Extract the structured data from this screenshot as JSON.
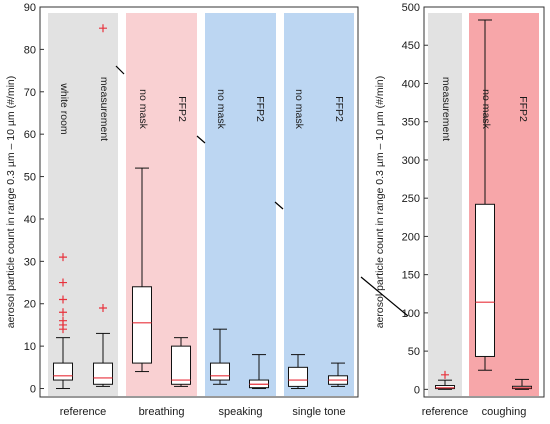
{
  "chart_data": [
    {
      "type": "box",
      "ylabel": "aerosol particle count in range 0.3 µm – 10 µm  (#/min)",
      "ylim": [
        -2,
        90
      ],
      "yticks": [
        0,
        10,
        20,
        30,
        40,
        50,
        60,
        70,
        80,
        90
      ],
      "groups": [
        {
          "label": "reference",
          "color": "#e2e2e2"
        },
        {
          "label": "breathing",
          "color": "#f9d0d2"
        },
        {
          "label": "speaking",
          "color": "#bcd6f2"
        },
        {
          "label": "single tone",
          "color": "#bcd6f2"
        }
      ],
      "series": [
        {
          "label": "white room",
          "group": 0,
          "whisker_low": 0,
          "q1": 2,
          "median": 3,
          "q3": 6,
          "whisker_high": 12,
          "outliers": [
            14,
            15,
            16,
            18,
            21,
            25,
            31
          ]
        },
        {
          "label": "measurement",
          "group": 0,
          "whisker_low": 0.5,
          "q1": 1,
          "median": 2.5,
          "q3": 6,
          "whisker_high": 13,
          "outliers": [
            19,
            85
          ]
        },
        {
          "label": "no mask",
          "group": 1,
          "whisker_low": 4,
          "q1": 6,
          "median": 15.5,
          "q3": 24,
          "whisker_high": 52,
          "outliers": []
        },
        {
          "label": "FFP2",
          "group": 1,
          "whisker_low": 0.5,
          "q1": 1,
          "median": 2,
          "q3": 10,
          "whisker_high": 12,
          "outliers": []
        },
        {
          "label": "no mask",
          "group": 2,
          "whisker_low": 1,
          "q1": 2,
          "median": 3,
          "q3": 6,
          "whisker_high": 14,
          "outliers": []
        },
        {
          "label": "FFP2",
          "group": 2,
          "whisker_low": 0,
          "q1": 0.2,
          "median": 1,
          "q3": 2,
          "whisker_high": 8,
          "outliers": []
        },
        {
          "label": "no mask",
          "group": 3,
          "whisker_low": 0,
          "q1": 0.5,
          "median": 2,
          "q3": 5,
          "whisker_high": 8,
          "outliers": []
        },
        {
          "label": "FFP2",
          "group": 3,
          "whisker_low": 0.5,
          "q1": 1,
          "median": 2,
          "q3": 3,
          "whisker_high": 6,
          "outliers": []
        }
      ]
    },
    {
      "type": "box",
      "ylabel": "aerosol particle count in range 0.3 µm – 10 µm  (#/min)",
      "ylim": [
        -10,
        500
      ],
      "yticks": [
        0,
        50,
        100,
        150,
        200,
        250,
        300,
        350,
        400,
        450,
        500
      ],
      "groups": [
        {
          "label": "reference",
          "color": "#e2e2e2"
        },
        {
          "label": "coughing",
          "color": "#f7a6a9"
        }
      ],
      "series": [
        {
          "label": "measurement",
          "group": 0,
          "whisker_low": 0,
          "q1": 1,
          "median": 2,
          "q3": 5,
          "whisker_high": 12,
          "outliers": [
            19
          ]
        },
        {
          "label": "no mask",
          "group": 1,
          "whisker_low": 25,
          "q1": 43,
          "median": 114,
          "q3": 242,
          "whisker_high": 483,
          "outliers": []
        },
        {
          "label": "FFP2",
          "group": 1,
          "whisker_low": 0,
          "q1": 1,
          "median": 2,
          "q3": 4,
          "whisker_high": 13,
          "outliers": []
        }
      ]
    }
  ]
}
